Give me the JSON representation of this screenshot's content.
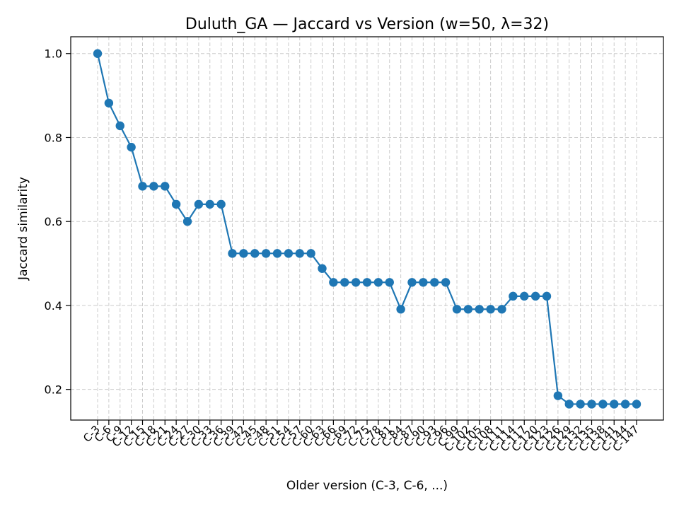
{
  "chart_data": {
    "type": "line",
    "title": "Duluth_GA — Jaccard vs Version (w=50, λ=32)",
    "xlabel": "Older version (C-3, C-6, ...)",
    "ylabel": "Jaccard similarity",
    "categories": [
      "C-3",
      "C-6",
      "C-9",
      "C-12",
      "C-15",
      "C-18",
      "C-21",
      "C-24",
      "C-27",
      "C-30",
      "C-33",
      "C-36",
      "C-39",
      "C-42",
      "C-45",
      "C-48",
      "C-51",
      "C-54",
      "C-57",
      "C-60",
      "C-63",
      "C-66",
      "C-69",
      "C-72",
      "C-75",
      "C-78",
      "C-81",
      "C-84",
      "C-87",
      "C-90",
      "C-93",
      "C-96",
      "C-99",
      "C-102",
      "C-105",
      "C-108",
      "C-111",
      "C-114",
      "C-117",
      "C-120",
      "C-123",
      "C-126",
      "C-129",
      "C-132",
      "C-135",
      "C-138",
      "C-141",
      "C-144",
      "C-147"
    ],
    "series": [
      {
        "values": [
          1.0,
          0.882,
          0.828,
          0.777,
          0.684,
          0.684,
          0.684,
          0.641,
          0.6,
          0.641,
          0.641,
          0.641,
          0.524,
          0.524,
          0.524,
          0.524,
          0.524,
          0.524,
          0.524,
          0.524,
          0.488,
          0.455,
          0.455,
          0.455,
          0.455,
          0.455,
          0.455,
          0.391,
          0.455,
          0.455,
          0.455,
          0.455,
          0.391,
          0.391,
          0.391,
          0.391,
          0.391,
          0.422,
          0.422,
          0.422,
          0.422,
          0.185,
          0.165,
          0.165,
          0.165,
          0.165,
          0.165,
          0.165,
          0.165
        ]
      }
    ],
    "yticks": [
      "0.2",
      "0.4",
      "0.6",
      "0.8",
      "1.0"
    ],
    "ylim": [
      0.127,
      1.04
    ],
    "grid": true,
    "color": "#1f77b4"
  }
}
